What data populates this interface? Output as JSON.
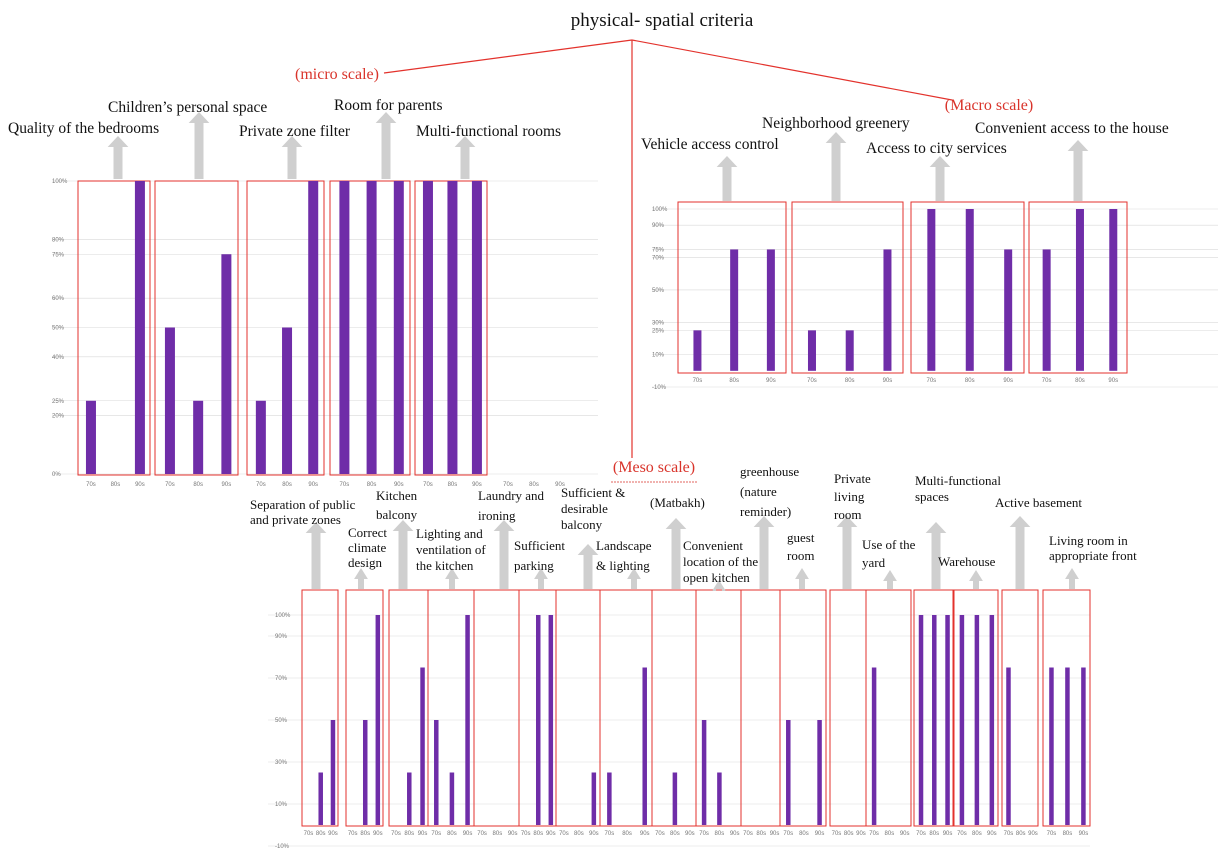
{
  "title": "physical- spatial criteria",
  "scales": {
    "micro": "(micro scale)",
    "macro": "(Macro scale)",
    "meso": "(Meso scale)"
  },
  "colors": {
    "bar": "#6f2da8",
    "frame": "#e3322c",
    "connector": "#e3322c",
    "grid": "#d9d9d9",
    "arrow": "#cfcfcf"
  },
  "chart_data": [
    {
      "type": "bar",
      "name": "micro",
      "categories": [
        "70s",
        "80s",
        "90s"
      ],
      "ylim": [
        0,
        100
      ],
      "yticks": [
        "100%",
        "80%",
        "75%",
        "60%",
        "50%",
        "40%",
        "25%",
        "20%",
        "0%"
      ],
      "groups": [
        {
          "label": "Quality of the bedrooms",
          "values": [
            25,
            0,
            100
          ]
        },
        {
          "label": "Children’s personal space",
          "values": [
            50,
            25,
            75
          ]
        },
        {
          "label": "Private zone filter",
          "values": [
            25,
            50,
            100
          ]
        },
        {
          "label": "Room for parents",
          "values": [
            100,
            100,
            100
          ]
        },
        {
          "label": "Multi-functional rooms",
          "values": [
            100,
            100,
            100
          ]
        }
      ],
      "extra_xticks": [
        "70s",
        "80s",
        "90s"
      ]
    },
    {
      "type": "bar",
      "name": "macro",
      "categories": [
        "70s",
        "80s",
        "90s"
      ],
      "ylim": [
        -10,
        100
      ],
      "yticks": [
        "100%",
        "90%",
        "75%",
        "70%",
        "50%",
        "30%",
        "25%",
        "10%",
        "-10%"
      ],
      "groups": [
        {
          "label": "Vehicle access control",
          "values": [
            25,
            75,
            75
          ]
        },
        {
          "label": "Neighborhood greenery",
          "values": [
            25,
            25,
            75
          ]
        },
        {
          "label": "Access to city services",
          "values": [
            100,
            100,
            75
          ]
        },
        {
          "label": "Convenient access to the house",
          "values": [
            75,
            100,
            100
          ]
        }
      ]
    },
    {
      "type": "bar",
      "name": "meso",
      "categories": [
        "70s",
        "80s",
        "90s"
      ],
      "ylim": [
        -10,
        100
      ],
      "yticks": [
        "100%",
        "90%",
        "70%",
        "50%",
        "30%",
        "10%",
        "-10%"
      ],
      "groups": [
        {
          "label": "Separation of public and private zones",
          "values": [
            0,
            25,
            50
          ]
        },
        {
          "label": "Correct climate design",
          "values": [
            0,
            50,
            100
          ]
        },
        {
          "label": "Kitchen balcony",
          "values": [
            0,
            25,
            75
          ]
        },
        {
          "label": "Lighting and ventilation of the kitchen",
          "values": [
            50,
            25,
            100
          ]
        },
        {
          "label": "Laundry and ironing",
          "values": [
            0,
            0,
            0
          ]
        },
        {
          "label": "Sufficient parking",
          "values": [
            0,
            100,
            100
          ]
        },
        {
          "label": "Sufficient & desirable balcony",
          "values": [
            0,
            0,
            25
          ]
        },
        {
          "label": "Landscape & lighting",
          "values": [
            25,
            0,
            75
          ]
        },
        {
          "label": "(Matbakh)",
          "values": [
            0,
            25,
            0
          ]
        },
        {
          "label": "Convenient location of the open kitchen",
          "values": [
            50,
            25,
            0
          ]
        },
        {
          "label": "greenhouse (nature reminder)",
          "values": [
            0,
            0,
            0
          ]
        },
        {
          "label": "guest room",
          "values": [
            50,
            0,
            50
          ]
        },
        {
          "label": "Private living room",
          "values": [
            0,
            0,
            0
          ]
        },
        {
          "label": "Use of the yard",
          "values": [
            75,
            0,
            0
          ]
        },
        {
          "label": "Multi-functional spaces",
          "values": [
            100,
            100,
            100
          ]
        },
        {
          "label": "Warehouse",
          "values": [
            100,
            100,
            100
          ]
        },
        {
          "label": "Active basement",
          "values": [
            75,
            0,
            0
          ]
        },
        {
          "label": "Living room in appropriate front",
          "values": [
            75,
            75,
            75
          ]
        }
      ]
    }
  ]
}
